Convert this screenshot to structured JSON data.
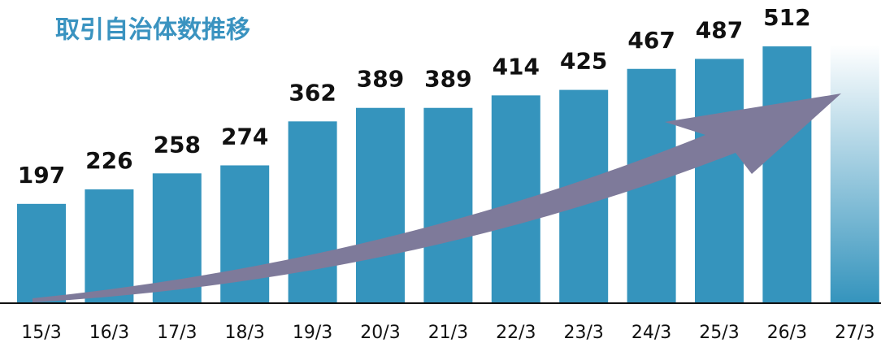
{
  "chart_data": {
    "type": "bar",
    "title": "取引自治体数推移",
    "categories": [
      "15/3",
      "16/3",
      "17/3",
      "18/3",
      "19/3",
      "20/3",
      "21/3",
      "22/3",
      "23/3",
      "24/3",
      "25/3",
      "26/3",
      "27/3"
    ],
    "values": [
      197,
      226,
      258,
      274,
      362,
      389,
      389,
      414,
      425,
      467,
      487,
      512,
      null
    ],
    "color": "#3594bd",
    "ylim": [
      0,
      530
    ]
  }
}
